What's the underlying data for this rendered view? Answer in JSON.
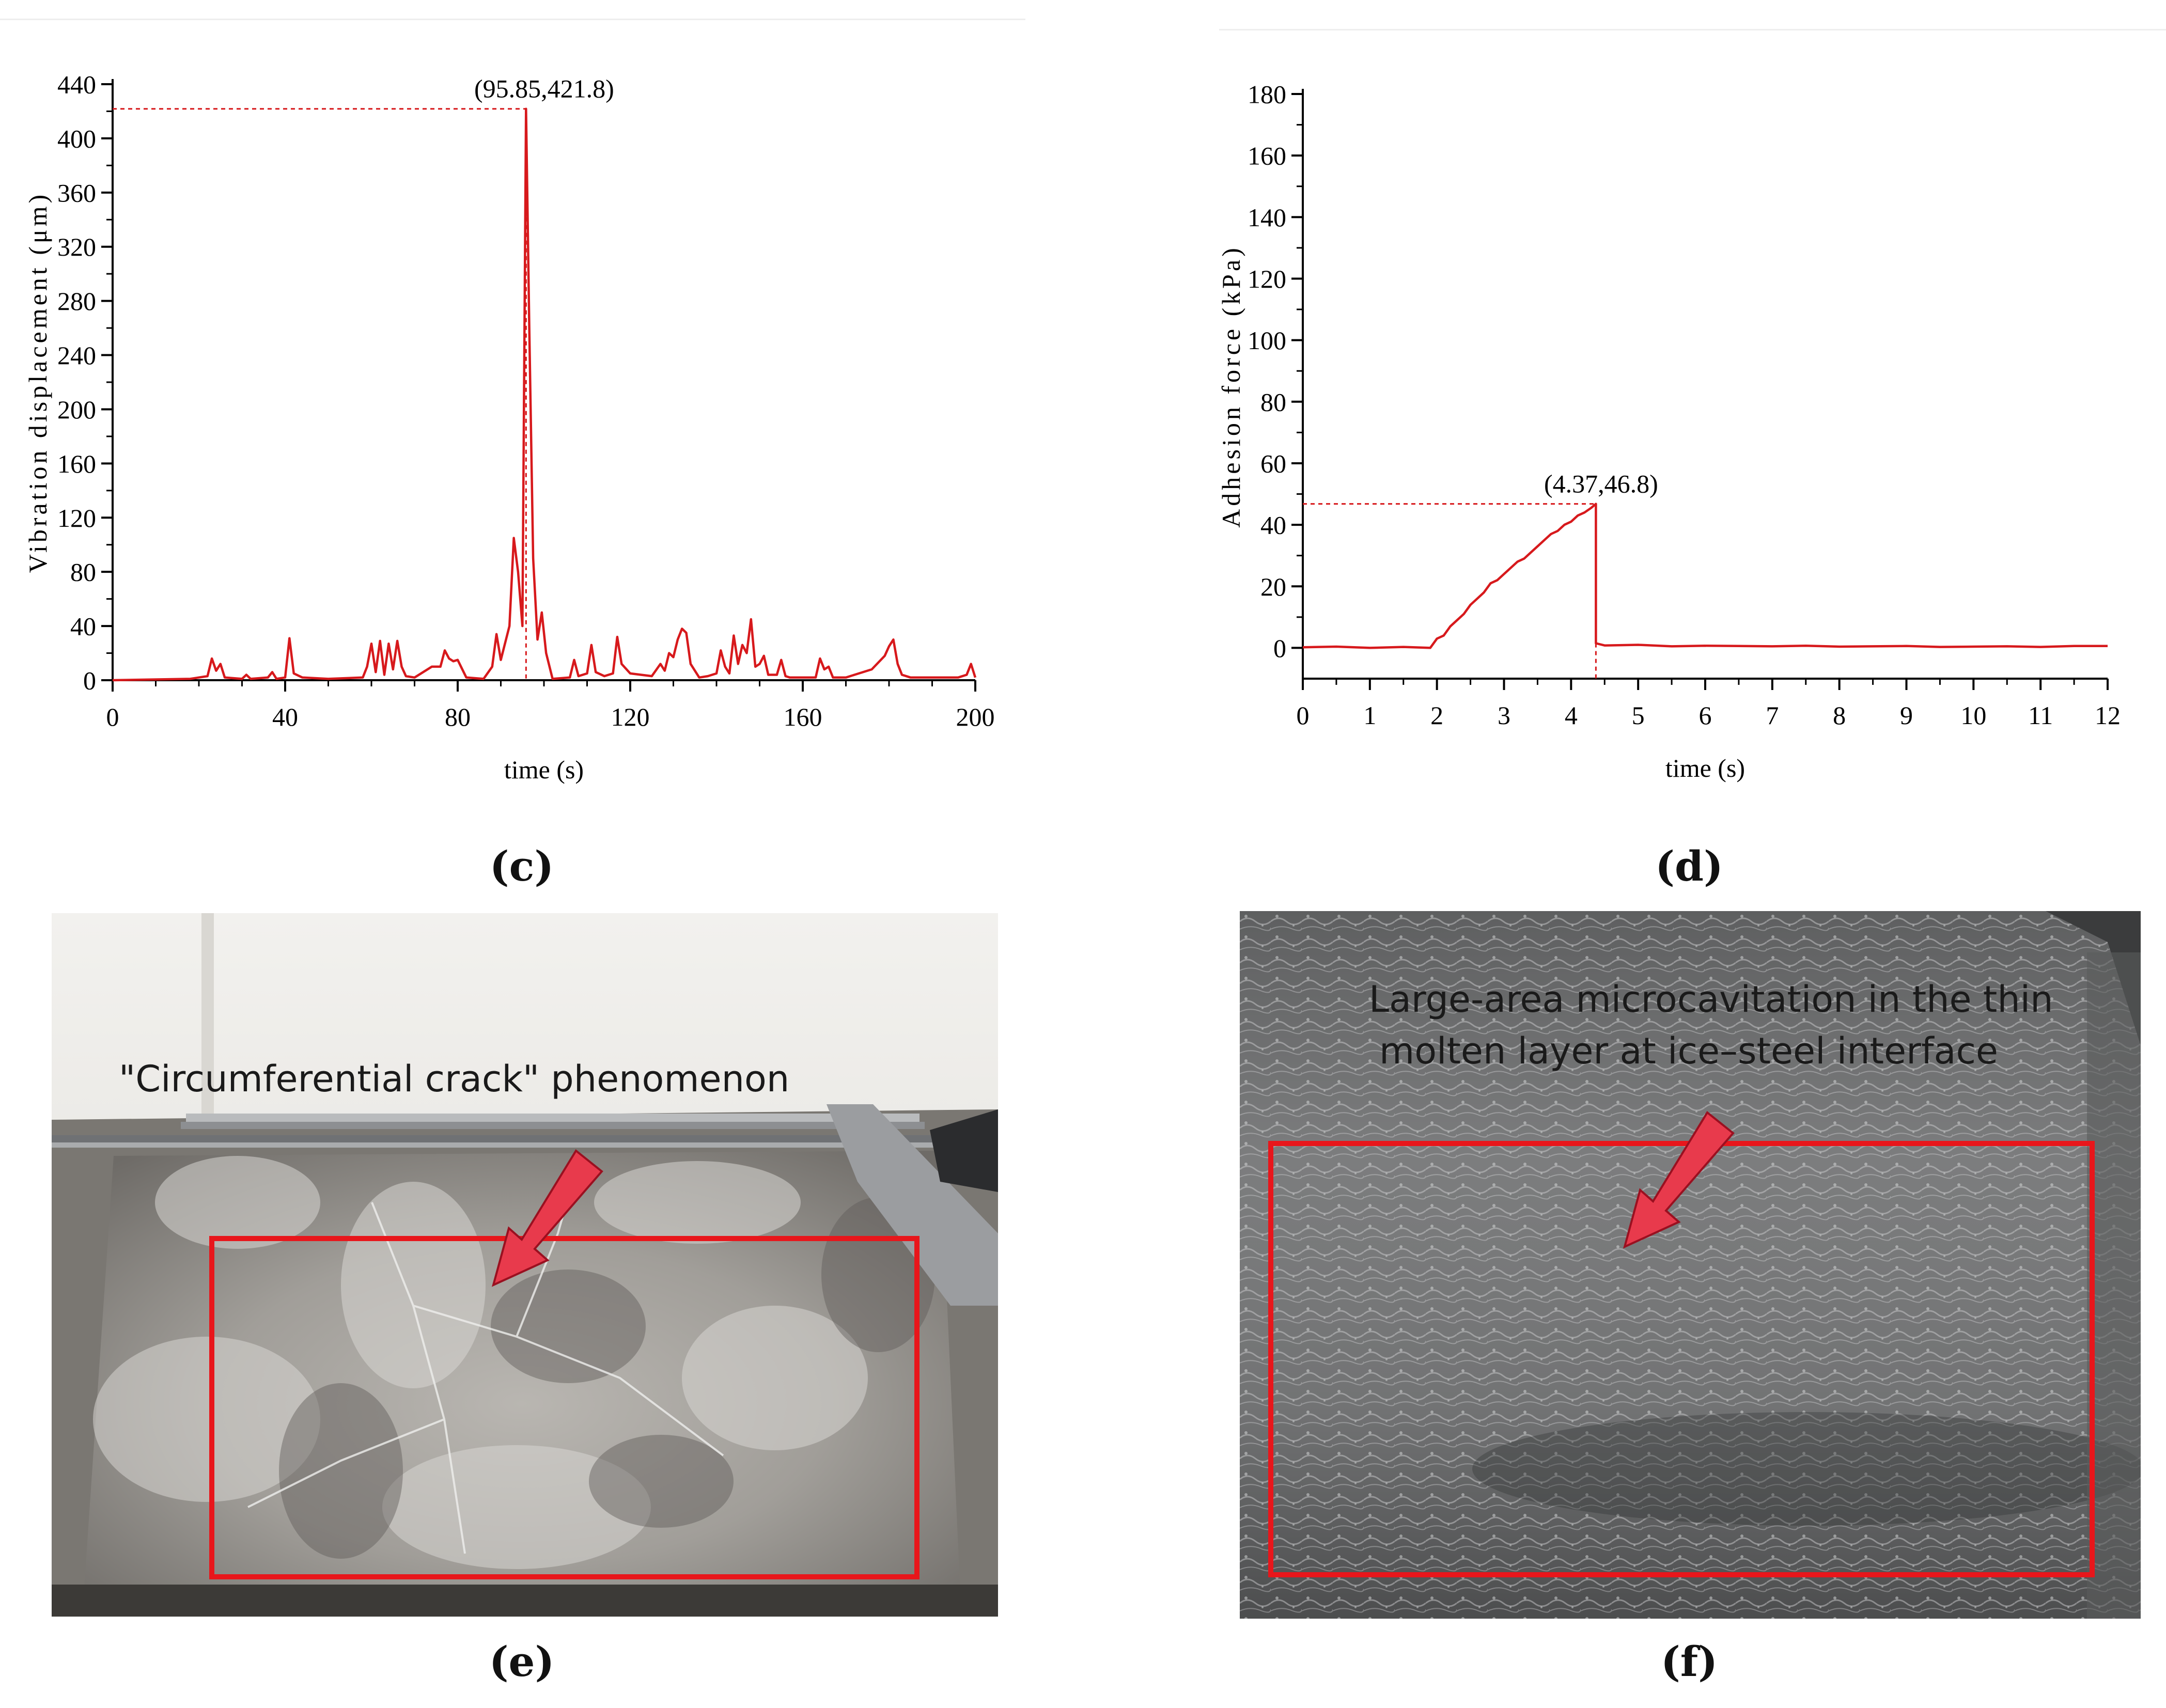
{
  "chart_data": [
    {
      "panel": "c",
      "type": "line",
      "xlabel": "time (s)",
      "ylabel": "Vibration displacement (μm)",
      "xlim": [
        0,
        200
      ],
      "ylim": [
        0,
        440
      ],
      "xticks": [
        0,
        40,
        80,
        120,
        160,
        200
      ],
      "yticks": [
        0,
        40,
        80,
        120,
        160,
        200,
        240,
        280,
        320,
        360,
        400,
        440
      ],
      "grid": false,
      "annotation": {
        "text": "(95.85,421.8)",
        "x": 95.85,
        "y": 421.8
      },
      "color": "#d7191c",
      "series": [
        {
          "x": [
            0,
            18,
            22,
            23,
            24,
            25,
            26,
            30,
            31,
            32,
            36,
            37,
            38,
            40,
            41,
            42,
            44,
            50,
            58,
            59,
            60,
            61,
            62,
            63,
            64,
            65,
            66,
            67,
            68,
            70,
            74,
            76,
            77,
            78,
            79,
            80,
            82,
            86,
            88,
            89,
            90,
            92,
            93,
            94,
            95,
            95.85,
            96.6,
            97.5,
            98.5,
            99.5,
            100.5,
            102,
            106,
            107,
            108,
            110,
            111,
            112,
            114,
            116,
            117,
            118,
            120,
            125,
            127,
            128,
            129,
            130,
            131,
            132,
            133,
            134,
            136,
            138,
            140,
            141,
            142,
            143,
            144,
            145,
            146,
            147,
            148,
            149,
            150,
            151,
            152,
            154,
            155,
            156,
            157,
            160,
            163,
            164,
            165,
            166,
            167,
            170,
            172,
            176,
            179,
            180,
            181,
            182,
            183,
            185,
            190,
            196,
            198,
            199,
            200
          ],
          "y": [
            0,
            1,
            3,
            16,
            7,
            12,
            2,
            1,
            4,
            1,
            2,
            6,
            1,
            2,
            31,
            5,
            2,
            1,
            2,
            10,
            27,
            6,
            29,
            4,
            27,
            8,
            29,
            10,
            3,
            2,
            10,
            10,
            22,
            16,
            14,
            15,
            2,
            1,
            10,
            34,
            15,
            40,
            105,
            80,
            40,
            421.8,
            260,
            90,
            30,
            50,
            20,
            1,
            2,
            15,
            3,
            5,
            26,
            6,
            3,
            5,
            32,
            12,
            5,
            3,
            12,
            7,
            20,
            17,
            30,
            38,
            35,
            12,
            2,
            3,
            5,
            22,
            10,
            5,
            33,
            12,
            26,
            20,
            45,
            10,
            12,
            18,
            4,
            4,
            15,
            3,
            2,
            2,
            2,
            16,
            8,
            10,
            2,
            2,
            4,
            8,
            18,
            25,
            30,
            12,
            4,
            2,
            2,
            2,
            4,
            12,
            2
          ]
        }
      ]
    },
    {
      "panel": "d",
      "type": "line",
      "xlabel": "time (s)",
      "ylabel": "Adhesion force (kPa)",
      "xlim": [
        0,
        12
      ],
      "ylim": [
        -10,
        180
      ],
      "xticks": [
        0,
        1,
        2,
        3,
        4,
        5,
        6,
        7,
        8,
        9,
        10,
        11,
        12
      ],
      "yticks": [
        0,
        20,
        40,
        60,
        80,
        100,
        120,
        140,
        160,
        180
      ],
      "grid": false,
      "annotation": {
        "text": "(4.37,46.8)",
        "x": 4.37,
        "y": 46.8
      },
      "color": "#d7191c",
      "series": [
        {
          "x": [
            0,
            0.5,
            1,
            1.5,
            1.9,
            2.0,
            2.1,
            2.2,
            2.3,
            2.4,
            2.5,
            2.6,
            2.7,
            2.8,
            2.9,
            3.0,
            3.1,
            3.2,
            3.3,
            3.4,
            3.5,
            3.6,
            3.7,
            3.8,
            3.9,
            4.0,
            4.1,
            4.2,
            4.3,
            4.37,
            4.37,
            4.5,
            5,
            5.5,
            6,
            6.5,
            7,
            7.5,
            8,
            8.5,
            9,
            9.5,
            10,
            10.5,
            11,
            11.5,
            12
          ],
          "y": [
            0.2,
            0.4,
            0,
            0.3,
            0,
            3,
            4,
            7,
            9,
            11,
            14,
            16,
            18,
            21,
            22,
            24,
            26,
            28,
            29,
            31,
            33,
            35,
            37,
            38,
            40,
            41,
            43,
            44,
            45.5,
            46.8,
            1.5,
            0.8,
            1,
            0.5,
            0.7,
            0.6,
            0.5,
            0.7,
            0.4,
            0.5,
            0.6,
            0.3,
            0.4,
            0.5,
            0.3,
            0.6,
            0.6
          ]
        }
      ]
    }
  ],
  "captions": {
    "c": "(c)",
    "d": "(d)",
    "e": "(e)",
    "f": "(f)"
  },
  "photos": {
    "e": {
      "label": "\"Circumferential crack\" phenomenon",
      "box_color": "#e8161b"
    },
    "f": {
      "label_line1": "Large-area microcavitation in the thin",
      "label_line2": "molten layer at ice–steel interface",
      "box_color": "#e8161b"
    }
  }
}
